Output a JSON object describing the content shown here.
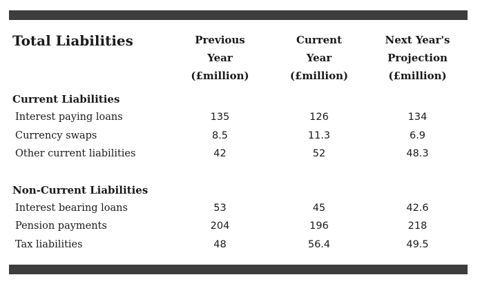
{
  "table": {
    "title": "Total Liabilities",
    "columns": [
      [
        "Previous",
        "Year",
        "(£million)"
      ],
      [
        "Current",
        "Year",
        "(£million)"
      ],
      [
        "Next Year's",
        "Projection",
        "(£million)"
      ]
    ],
    "sections": [
      {
        "name": "Current Liabilities",
        "rows": [
          {
            "label": "Interest paying loans",
            "values": [
              "135",
              "126",
              "134"
            ]
          },
          {
            "label": "Currency swaps",
            "values": [
              "8.5",
              "11.3",
              "6.9"
            ]
          },
          {
            "label": "Other current liabilities",
            "values": [
              "42",
              "52",
              "48.3"
            ]
          }
        ]
      },
      {
        "name": "Non-Current Liabilities",
        "rows": [
          {
            "label": "Interest bearing loans",
            "values": [
              "53",
              "45",
              "42.6"
            ]
          },
          {
            "label": "Pension payments",
            "values": [
              "204",
              "196",
              "218"
            ]
          },
          {
            "label": "Tax liabilities",
            "values": [
              "48",
              "56.4",
              "49.5"
            ]
          }
        ]
      }
    ]
  },
  "chart_data": {
    "type": "table",
    "title": "Total Liabilities",
    "columns": [
      "Previous Year (£million)",
      "Current Year (£million)",
      "Next Year's Projection (£million)"
    ],
    "rows": [
      {
        "section": "Current Liabilities",
        "label": "Interest paying loans",
        "values": [
          135,
          126,
          134
        ]
      },
      {
        "section": "Current Liabilities",
        "label": "Currency swaps",
        "values": [
          8.5,
          11.3,
          6.9
        ]
      },
      {
        "section": "Current Liabilities",
        "label": "Other current liabilities",
        "values": [
          42,
          52,
          48.3
        ]
      },
      {
        "section": "Non-Current Liabilities",
        "label": "Interest bearing loans",
        "values": [
          53,
          45,
          42.6
        ]
      },
      {
        "section": "Non-Current Liabilities",
        "label": "Pension payments",
        "values": [
          204,
          196,
          218
        ]
      },
      {
        "section": "Non-Current Liabilities",
        "label": "Tax liabilities",
        "values": [
          48,
          56.4,
          49.5
        ]
      }
    ]
  }
}
